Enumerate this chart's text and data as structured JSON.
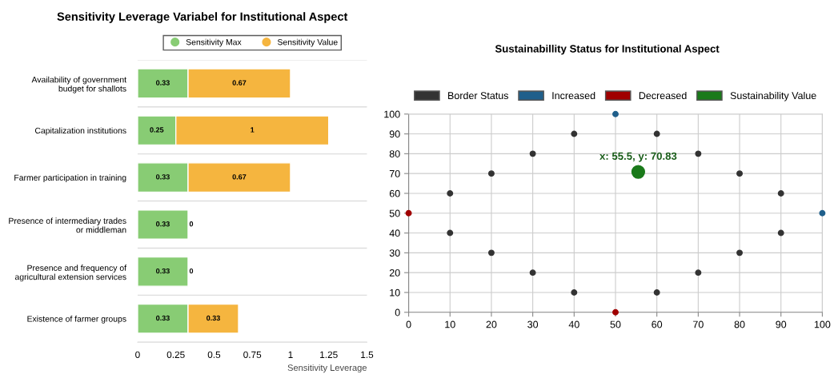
{
  "chart_data": [
    {
      "type": "bar",
      "title": "Sensitivity Leverage Variabel for Institutional Aspect",
      "xlabel": "Sensitivity Leverage",
      "orientation": "horizontal",
      "stacked": true,
      "data_labels": true,
      "legend": "top",
      "categories": [
        "Availability of government\nbudget for shallots",
        "Capitalization institutions",
        "Farmer participation in training",
        "Presence of intermediary trades\nor middleman",
        "Presence and frequency of\nagricultural extension services",
        "Existence of farmer groups"
      ],
      "series": [
        {
          "name": "Sensitivity Max",
          "color": "#88cc74",
          "values": [
            0.33,
            0.25,
            0.33,
            0.33,
            0.33,
            0.33
          ]
        },
        {
          "name": "Sensitivity Value",
          "color": "#f5b53f",
          "values": [
            0.67,
            1,
            0.67,
            0,
            0,
            0.33
          ]
        }
      ],
      "xlim": [
        0,
        1.5
      ],
      "xticks": [
        0,
        0.25,
        0.5,
        0.75,
        1,
        1.25,
        1.5
      ]
    },
    {
      "type": "scatter",
      "title": "Sustainabillity Status for Institutional Aspect",
      "legend": "top",
      "grid": true,
      "marker": "circle",
      "series": [
        {
          "name": "Border Status",
          "color": "#333333",
          "x": [
            10,
            10,
            20,
            20,
            30,
            30,
            40,
            40,
            60,
            60,
            70,
            70,
            80,
            80,
            90,
            90
          ],
          "values": [
            60,
            40,
            70,
            30,
            80,
            20,
            90,
            10,
            90,
            10,
            80,
            20,
            70,
            30,
            60,
            40
          ]
        },
        {
          "name": "Increased",
          "color": "#1f5f8b",
          "x": [
            50,
            100
          ],
          "values": [
            100,
            50
          ]
        },
        {
          "name": "Decreased",
          "color": "#a00000",
          "x": [
            0,
            50
          ],
          "values": [
            50,
            0
          ]
        },
        {
          "name": "Sustainability Value",
          "color": "#1a7a1a",
          "x": [
            55.5
          ],
          "values": [
            70.83
          ]
        }
      ],
      "annotations": [
        {
          "text": "x: 55.5, y: 70.83",
          "x": 55.5,
          "y": 70.83
        }
      ],
      "xlim": [
        0,
        100
      ],
      "xticks": [
        0,
        10,
        20,
        30,
        40,
        50,
        60,
        70,
        80,
        90,
        100
      ],
      "ylim": [
        0,
        100
      ],
      "yticks": [
        0,
        10,
        20,
        30,
        40,
        50,
        60,
        70,
        80,
        90,
        100
      ]
    }
  ]
}
